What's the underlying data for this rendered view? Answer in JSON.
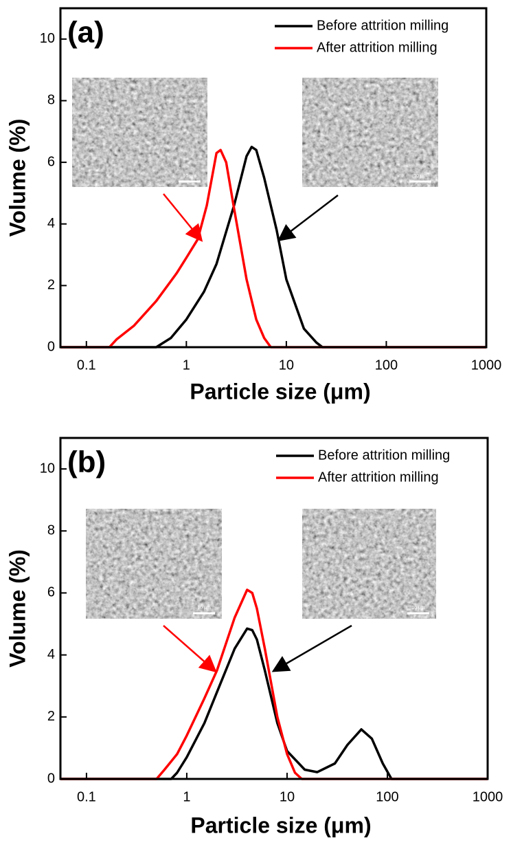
{
  "chart_data": [
    {
      "type": "line",
      "panel_label": "(a)",
      "xlabel": "Particle size (μm)",
      "ylabel": "Volume (%)",
      "xscale": "log",
      "xlim": [
        0.055,
        1000
      ],
      "ylim": [
        0,
        11
      ],
      "xticks": [
        0.1,
        1,
        10,
        100,
        1000
      ],
      "yticks": [
        0,
        2,
        4,
        6,
        8,
        10
      ],
      "legend": "upper right",
      "annotations": [
        "10 μm",
        "10 μm"
      ],
      "series": [
        {
          "name": "Before attrition milling",
          "color": "#000000",
          "x": [
            0.055,
            0.5,
            0.7,
            1,
            1.5,
            2,
            3,
            4,
            4.5,
            5,
            6,
            8,
            10,
            15,
            20,
            23,
            1000
          ],
          "values": [
            0,
            0,
            0.3,
            0.9,
            1.8,
            2.7,
            4.6,
            6.2,
            6.5,
            6.4,
            5.5,
            3.8,
            2.2,
            0.6,
            0.15,
            0,
            0
          ]
        },
        {
          "name": "After attrition milling",
          "color": "#ff0000",
          "x": [
            0.055,
            0.17,
            0.2,
            0.3,
            0.5,
            0.8,
            1,
            1.3,
            1.6,
            2,
            2.2,
            2.5,
            3,
            4,
            5,
            6,
            7,
            1000
          ],
          "values": [
            0,
            0,
            0.25,
            0.7,
            1.5,
            2.4,
            2.9,
            3.5,
            4.6,
            6.3,
            6.4,
            6.0,
            4.5,
            2.2,
            0.9,
            0.3,
            0,
            0
          ]
        }
      ]
    },
    {
      "type": "line",
      "panel_label": "(b)",
      "xlabel": "Particle size (μm)",
      "ylabel": "Volume (%)",
      "xscale": "log",
      "xlim": [
        0.055,
        1000
      ],
      "ylim": [
        0,
        11
      ],
      "xticks": [
        0.1,
        1,
        10,
        100,
        1000
      ],
      "yticks": [
        0,
        2,
        4,
        6,
        8,
        10
      ],
      "legend": "upper right",
      "annotations": [
        "10 μm",
        "10 μm"
      ],
      "series": [
        {
          "name": "Before attrition milling",
          "color": "#000000",
          "x": [
            0.055,
            0.7,
            0.8,
            1,
            1.5,
            2,
            3,
            4,
            4.5,
            5,
            6,
            8,
            10,
            15,
            20,
            30,
            40,
            55,
            70,
            90,
            110,
            1000
          ],
          "values": [
            0,
            0,
            0.2,
            0.7,
            1.8,
            2.8,
            4.2,
            4.85,
            4.8,
            4.5,
            3.5,
            1.8,
            0.9,
            0.3,
            0.22,
            0.5,
            1.1,
            1.6,
            1.3,
            0.5,
            0,
            0
          ]
        },
        {
          "name": "After attrition milling",
          "color": "#ff0000",
          "x": [
            0.055,
            0.5,
            0.6,
            0.8,
            1,
            1.5,
            2,
            3,
            4,
            4.5,
            5,
            6,
            8,
            10,
            12,
            14,
            1000
          ],
          "values": [
            0,
            0,
            0.3,
            0.8,
            1.4,
            2.6,
            3.5,
            5.2,
            6.1,
            6.0,
            5.5,
            4.2,
            2.0,
            0.8,
            0.2,
            0,
            0
          ]
        }
      ]
    }
  ]
}
